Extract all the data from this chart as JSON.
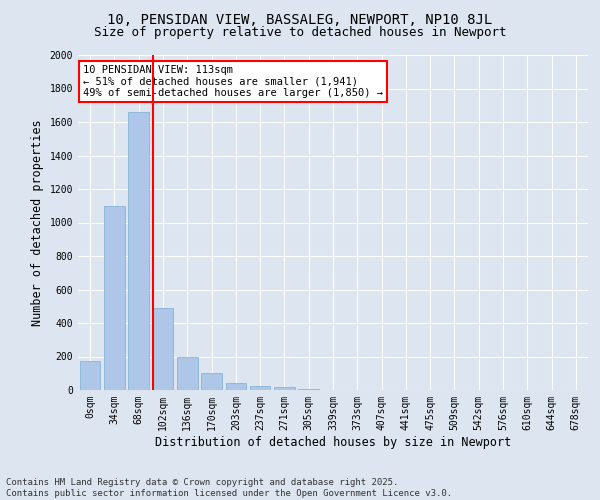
{
  "title_line1": "10, PENSIDAN VIEW, BASSALEG, NEWPORT, NP10 8JL",
  "title_line2": "Size of property relative to detached houses in Newport",
  "xlabel": "Distribution of detached houses by size in Newport",
  "ylabel": "Number of detached properties",
  "categories": [
    "0sqm",
    "34sqm",
    "68sqm",
    "102sqm",
    "136sqm",
    "170sqm",
    "203sqm",
    "237sqm",
    "271sqm",
    "305sqm",
    "339sqm",
    "373sqm",
    "407sqm",
    "441sqm",
    "475sqm",
    "509sqm",
    "542sqm",
    "576sqm",
    "610sqm",
    "644sqm",
    "678sqm"
  ],
  "values": [
    175,
    1100,
    1660,
    490,
    200,
    100,
    40,
    25,
    15,
    5,
    2,
    0,
    0,
    0,
    0,
    0,
    0,
    0,
    0,
    0,
    0
  ],
  "bar_color": "#aec6e8",
  "bar_edge_color": "#7bafd4",
  "vline_color": "red",
  "vline_x_index": 3,
  "annotation_text": "10 PENSIDAN VIEW: 113sqm\n← 51% of detached houses are smaller (1,941)\n49% of semi-detached houses are larger (1,850) →",
  "annotation_box_color": "white",
  "annotation_box_edge": "red",
  "ylim": [
    0,
    2000
  ],
  "yticks": [
    0,
    200,
    400,
    600,
    800,
    1000,
    1200,
    1400,
    1600,
    1800,
    2000
  ],
  "bg_color": "#dde5f0",
  "plot_bg_color": "#dde5f0",
  "footer_line1": "Contains HM Land Registry data © Crown copyright and database right 2025.",
  "footer_line2": "Contains public sector information licensed under the Open Government Licence v3.0.",
  "title_fontsize": 10,
  "subtitle_fontsize": 9,
  "axis_label_fontsize": 8.5,
  "tick_fontsize": 7,
  "annotation_fontsize": 7.5,
  "footer_fontsize": 6.5
}
